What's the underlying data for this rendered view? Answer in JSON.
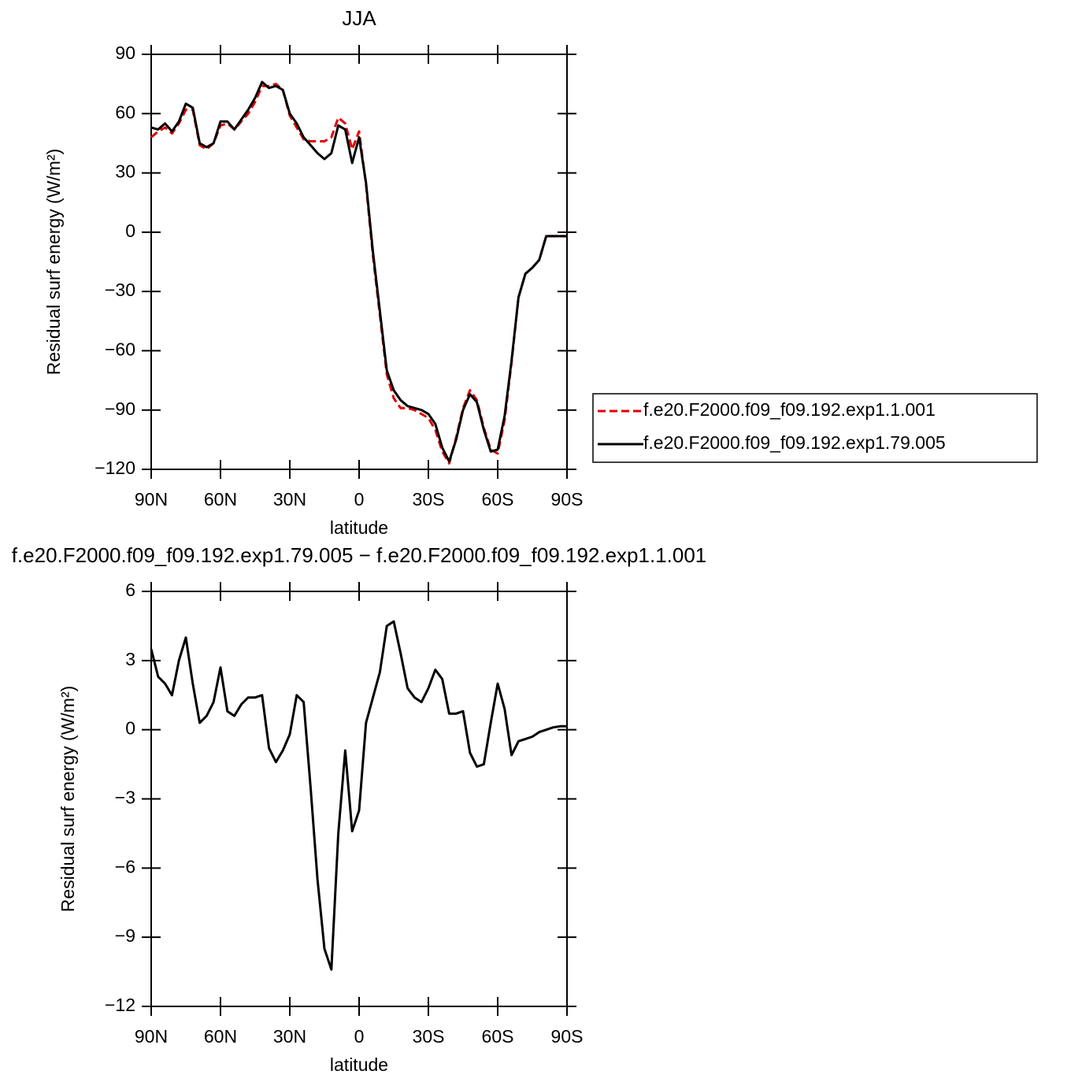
{
  "chart_data": [
    {
      "type": "line",
      "title": "JJA",
      "xlabel": "latitude",
      "ylabel": "Residual surf energy (W/m²)",
      "x": [
        90,
        87,
        84,
        81,
        78,
        75,
        72,
        69,
        66,
        63,
        60,
        57,
        54,
        51,
        48,
        45,
        42,
        39,
        36,
        33,
        30,
        27,
        24,
        21,
        18,
        15,
        12,
        9,
        6,
        3,
        0,
        -3,
        -6,
        -9,
        -12,
        -15,
        -18,
        -21,
        -24,
        -27,
        -30,
        -33,
        -36,
        -39,
        -42,
        -45,
        -48,
        -51,
        -54,
        -57,
        -60,
        -63,
        -66,
        -69,
        -72,
        -75,
        -78,
        -81,
        -84,
        -87,
        -90
      ],
      "series": [
        {
          "name": "f.e20.F2000.f09_f09.192.exp1.1.001",
          "color": "#e00000",
          "dash": true,
          "values": [
            48,
            51,
            53,
            50,
            55,
            62,
            62,
            44,
            42,
            45,
            54,
            55,
            52,
            56,
            60,
            66,
            74,
            74,
            75,
            72,
            59,
            53,
            47,
            46,
            46,
            46,
            48,
            58,
            55,
            42,
            51,
            24,
            -12,
            -42,
            -72,
            -84,
            -89,
            -89,
            -90,
            -92,
            -94,
            -100,
            -111,
            -117,
            -104,
            -89,
            -80,
            -85,
            -99,
            -110,
            -112,
            -95,
            -66,
            -33,
            -21,
            -18,
            -14,
            -2,
            -2,
            -2,
            -2
          ]
        },
        {
          "name": "f.e20.F2000.f09_f09.192.exp1.79.005",
          "color": "#000000",
          "dash": false,
          "values": [
            53,
            52,
            55,
            51,
            56,
            65,
            63,
            45,
            43,
            45,
            56,
            56,
            52,
            57,
            62,
            68,
            76,
            73,
            74,
            72,
            60,
            55,
            48,
            44,
            40,
            37,
            40,
            54,
            52,
            35,
            48,
            25,
            -10,
            -40,
            -70,
            -80,
            -85,
            -88,
            -89,
            -90,
            -92,
            -97,
            -109,
            -116,
            -105,
            -90,
            -82,
            -86,
            -100,
            -111,
            -110,
            -93,
            -65,
            -33,
            -21,
            -18,
            -14,
            -2,
            -2,
            -2,
            -2
          ]
        }
      ],
      "xlim": [
        90,
        -90
      ],
      "xticks": [
        {
          "value": 90,
          "label": "90N"
        },
        {
          "value": 60,
          "label": "60N"
        },
        {
          "value": 30,
          "label": "30N"
        },
        0,
        {
          "value": -30,
          "label": "30S"
        },
        {
          "value": -60,
          "label": "60S"
        },
        {
          "value": -90,
          "label": "90S"
        }
      ],
      "ylim": [
        -120,
        90
      ],
      "yticks": [
        90,
        60,
        30,
        0,
        {
          "value": -30,
          "label": "−30"
        },
        {
          "value": -60,
          "label": "−60"
        },
        {
          "value": -90,
          "label": "−90"
        },
        {
          "value": -120,
          "label": "−120"
        }
      ],
      "legend": "right"
    },
    {
      "type": "line",
      "title": "f.e20.F2000.f09_f09.192.exp1.79.005 − f.e20.F2000.f09_f09.192.exp1.1.001",
      "xlabel": "latitude",
      "ylabel": "Residual surf energy (W/m²)",
      "x": [
        90,
        87,
        84,
        81,
        78,
        75,
        72,
        69,
        66,
        63,
        60,
        57,
        54,
        51,
        48,
        45,
        42,
        39,
        36,
        33,
        30,
        27,
        24,
        21,
        18,
        15,
        12,
        9,
        6,
        3,
        0,
        -3,
        -6,
        -9,
        -12,
        -15,
        -18,
        -21,
        -24,
        -27,
        -30,
        -33,
        -36,
        -39,
        -42,
        -45,
        -48,
        -51,
        -54,
        -57,
        -60,
        -63,
        -66,
        -69,
        -72,
        -75,
        -78,
        -81,
        -84,
        -87,
        -90
      ],
      "series": [
        {
          "color": "#000000",
          "dash": false,
          "values": [
            3.5,
            2.3,
            2.0,
            1.5,
            3.0,
            4.0,
            2.0,
            0.3,
            0.6,
            1.2,
            2.7,
            0.8,
            0.6,
            1.1,
            1.4,
            1.4,
            1.5,
            -0.8,
            -1.4,
            -0.9,
            -0.2,
            1.5,
            1.2,
            -2.5,
            -6.5,
            -9.5,
            -10.4,
            -4.5,
            -0.9,
            -4.4,
            -3.5,
            0.3,
            1.4,
            2.5,
            4.5,
            4.7,
            3.3,
            1.8,
            1.4,
            1.2,
            1.8,
            2.6,
            2.2,
            0.7,
            0.7,
            0.8,
            -1.0,
            -1.6,
            -1.5,
            0.3,
            2.0,
            0.9,
            -1.1,
            -0.5,
            -0.4,
            -0.3,
            -0.1,
            0,
            0.1,
            0.15,
            0.15
          ]
        }
      ],
      "xlim": [
        90,
        -90
      ],
      "xticks": [
        {
          "value": 90,
          "label": "90N"
        },
        {
          "value": 60,
          "label": "60N"
        },
        {
          "value": 30,
          "label": "30N"
        },
        0,
        {
          "value": -30,
          "label": "30S"
        },
        {
          "value": -60,
          "label": "60S"
        },
        {
          "value": -90,
          "label": "90S"
        }
      ],
      "ylim": [
        -12,
        6
      ],
      "yticks": [
        6,
        3,
        0,
        {
          "value": -3,
          "label": "−3"
        },
        {
          "value": -6,
          "label": "−6"
        },
        {
          "value": -9,
          "label": "−9"
        },
        {
          "value": -12,
          "label": "−12"
        }
      ]
    }
  ]
}
